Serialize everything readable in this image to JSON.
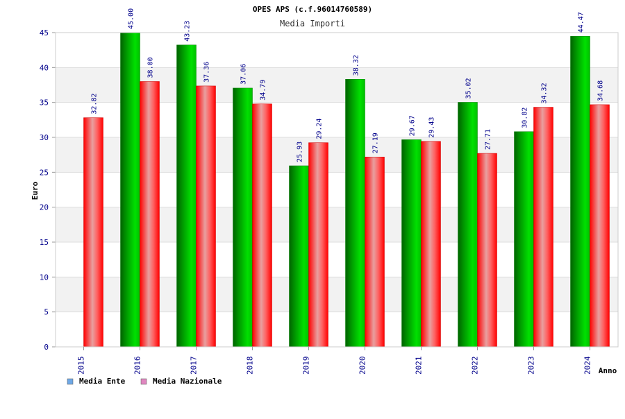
{
  "chart_data": {
    "type": "bar",
    "title": "OPES APS (c.f.96014760589)",
    "subtitle": "Media Importi",
    "xlabel": "Anno",
    "ylabel": "Euro",
    "ylim": [
      0,
      45
    ],
    "yticks": [
      0,
      5,
      10,
      15,
      20,
      25,
      30,
      35,
      40,
      45
    ],
    "grid": true,
    "legend_position": "bottom-left",
    "categories": [
      "2015",
      "2016",
      "2017",
      "2018",
      "2019",
      "2020",
      "2021",
      "2022",
      "2023",
      "2024"
    ],
    "series": [
      {
        "name": "Media Ente",
        "color": "#00c800",
        "legend_color": "#6fa8e6",
        "values": [
          null,
          45.0,
          43.23,
          37.06,
          25.93,
          38.32,
          29.67,
          35.02,
          30.82,
          44.47
        ],
        "labels": [
          "",
          "45.00",
          "43.23",
          "37.06",
          "25.93",
          "38.32",
          "29.67",
          "35.02",
          "30.82",
          "44.47"
        ]
      },
      {
        "name": "Media Nazionale",
        "color": "#ff0000",
        "legend_color": "#e087c0",
        "values": [
          32.82,
          38.0,
          37.36,
          34.79,
          29.24,
          27.19,
          29.43,
          27.71,
          34.32,
          34.68
        ],
        "labels": [
          "32.82",
          "38.00",
          "37.36",
          "34.79",
          "29.24",
          "27.19",
          "29.43",
          "27.71",
          "34.32",
          "34.68"
        ]
      }
    ]
  }
}
